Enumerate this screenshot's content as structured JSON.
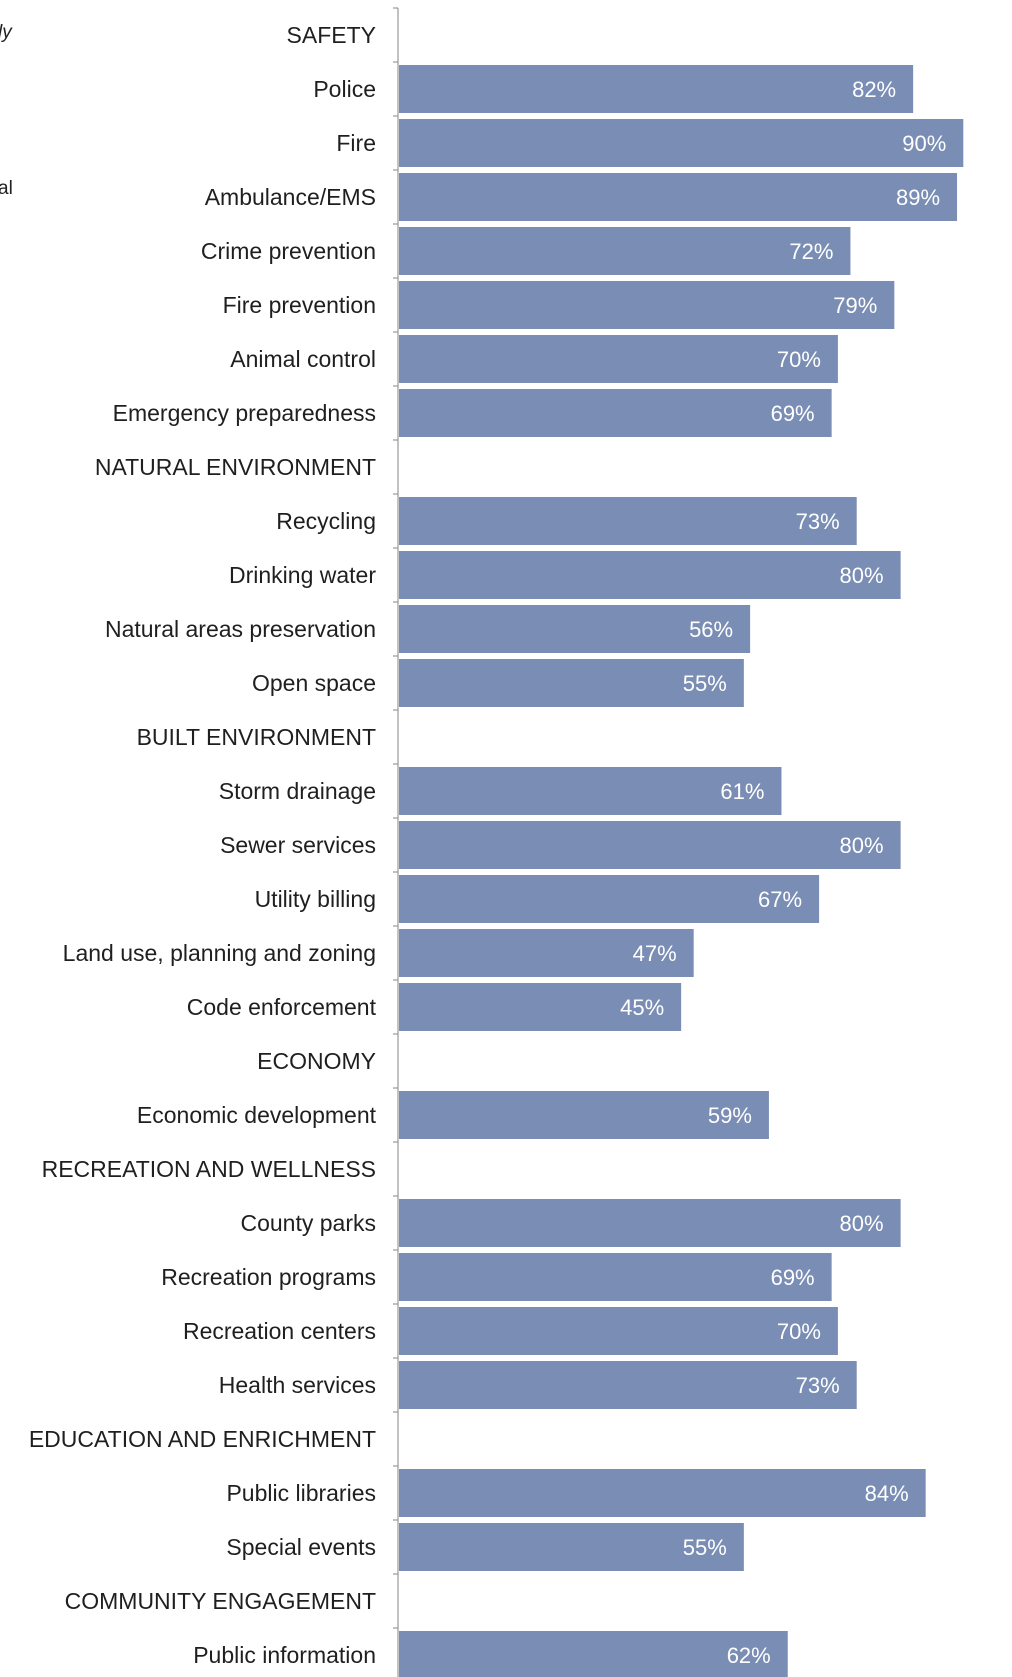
{
  "side_text": [
    "ly",
    "al"
  ],
  "chart_data": {
    "type": "bar",
    "orientation": "horizontal",
    "value_format": "{v}%",
    "bar_color": "#7a8db4",
    "value_label_color": "#ffffff",
    "xlim": [
      0,
      90
    ],
    "grid": false,
    "rows": [
      {
        "label": "SAFETY",
        "header": true
      },
      {
        "label": "Police",
        "value": 82
      },
      {
        "label": "Fire",
        "value": 90
      },
      {
        "label": "Ambulance/EMS",
        "value": 89
      },
      {
        "label": "Crime prevention",
        "value": 72
      },
      {
        "label": "Fire prevention",
        "value": 79
      },
      {
        "label": "Animal control",
        "value": 70
      },
      {
        "label": "Emergency preparedness",
        "value": 69
      },
      {
        "label": "NATURAL ENVIRONMENT",
        "header": true
      },
      {
        "label": "Recycling",
        "value": 73
      },
      {
        "label": "Drinking water",
        "value": 80
      },
      {
        "label": "Natural areas preservation",
        "value": 56
      },
      {
        "label": "Open space",
        "value": 55
      },
      {
        "label": "BUILT ENVIRONMENT",
        "header": true
      },
      {
        "label": "Storm drainage",
        "value": 61
      },
      {
        "label": "Sewer services",
        "value": 80
      },
      {
        "label": "Utility billing",
        "value": 67
      },
      {
        "label": "Land use, planning and zoning",
        "value": 47
      },
      {
        "label": "Code enforcement",
        "value": 45
      },
      {
        "label": "ECONOMY",
        "header": true
      },
      {
        "label": "Economic development",
        "value": 59
      },
      {
        "label": "RECREATION AND WELLNESS",
        "header": true
      },
      {
        "label": "County parks",
        "value": 80
      },
      {
        "label": "Recreation programs",
        "value": 69
      },
      {
        "label": "Recreation centers",
        "value": 70
      },
      {
        "label": "Health services",
        "value": 73
      },
      {
        "label": "EDUCATION AND ENRICHMENT",
        "header": true
      },
      {
        "label": "Public libraries",
        "value": 84
      },
      {
        "label": "Special events",
        "value": 55
      },
      {
        "label": "COMMUNITY ENGAGEMENT",
        "header": true
      },
      {
        "label": "Public information",
        "value": 62
      }
    ]
  }
}
